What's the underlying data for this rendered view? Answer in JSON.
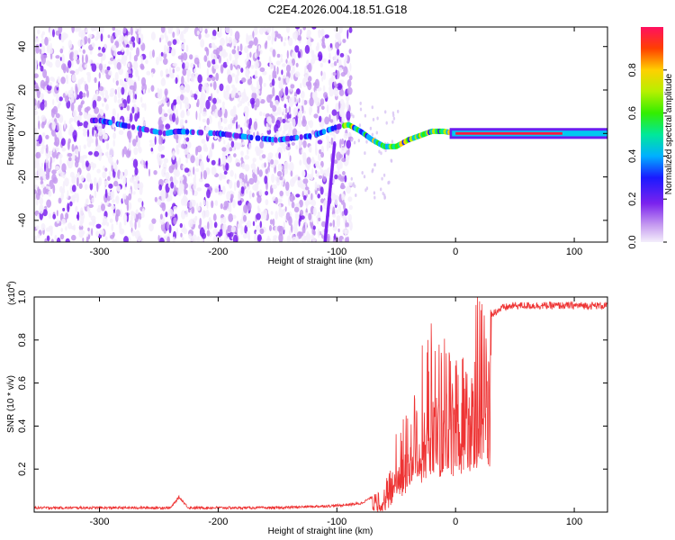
{
  "title": "C2E4.2026.004.18.51.G18",
  "chart_data": [
    {
      "type": "heatmap",
      "name": "spectrogram",
      "xlabel": "Height of straight line (km)",
      "ylabel": "Frequency (Hz)",
      "xlim": [
        -355,
        128
      ],
      "ylim": [
        -50,
        49
      ],
      "xticks": [
        -300,
        -200,
        -100,
        0,
        100
      ],
      "xtick_labels": [
        "-300",
        "-200",
        "-100",
        "0",
        "100"
      ],
      "yticks": [
        -40,
        -20,
        0,
        20,
        40
      ],
      "ytick_labels": [
        "-40",
        "-20",
        "0",
        "20",
        "40"
      ],
      "ridge": [
        {
          "x": -300,
          "y": 6
        },
        {
          "x": -245,
          "y": 0
        },
        {
          "x": -235,
          "y": 1
        },
        {
          "x": -200,
          "y": 0
        },
        {
          "x": -170,
          "y": -2
        },
        {
          "x": -150,
          "y": -3
        },
        {
          "x": -120,
          "y": -1
        },
        {
          "x": -100,
          "y": 3
        },
        {
          "x": -90,
          "y": 4
        },
        {
          "x": -80,
          "y": 1
        },
        {
          "x": -70,
          "y": -3
        },
        {
          "x": -60,
          "y": -6
        },
        {
          "x": -50,
          "y": -6
        },
        {
          "x": -40,
          "y": -3
        },
        {
          "x": -30,
          "y": -1
        },
        {
          "x": -20,
          "y": 1
        },
        {
          "x": -10,
          "y": 1
        },
        {
          "x": 0,
          "y": 0
        },
        {
          "x": 128,
          "y": 0
        }
      ],
      "colorbar": {
        "label": "Normalized spectral amplitude",
        "range": [
          0,
          1
        ],
        "ticks": [
          0.0,
          0.2,
          0.4,
          0.6,
          0.8
        ],
        "tick_labels": [
          "0.0",
          "0.2",
          "0.4",
          "0.6",
          "0.8"
        ]
      }
    },
    {
      "type": "line",
      "name": "snr",
      "xlabel": "Height of straight line (km)",
      "ylabel": "SNR (10 * v/v)",
      "scale_label": "(x10",
      "scale_exp": "4",
      "scale_close": ")",
      "color": "#ee3333",
      "xlim": [
        -355,
        128
      ],
      "ylim": [
        0,
        1.0
      ],
      "xticks": [
        -300,
        -200,
        -100,
        0,
        100
      ],
      "xtick_labels": [
        "-300",
        "-200",
        "-100",
        "0",
        "100"
      ],
      "yticks": [
        0.2,
        0.4,
        0.6,
        0.8,
        1.0
      ],
      "ytick_labels": [
        "0.2",
        "0.4",
        "0.6",
        "0.8",
        "1.0"
      ],
      "envelope": [
        {
          "x": -355,
          "y": 0.02
        },
        {
          "x": -240,
          "y": 0.02
        },
        {
          "x": -233,
          "y": 0.07
        },
        {
          "x": -225,
          "y": 0.02
        },
        {
          "x": -150,
          "y": 0.02
        },
        {
          "x": -100,
          "y": 0.03
        },
        {
          "x": -80,
          "y": 0.04
        },
        {
          "x": -60,
          "y": 0.1
        },
        {
          "x": -50,
          "y": 0.28
        },
        {
          "x": -40,
          "y": 0.45
        },
        {
          "x": -30,
          "y": 0.6
        },
        {
          "x": -20,
          "y": 0.72
        },
        {
          "x": -10,
          "y": 0.7
        },
        {
          "x": 0,
          "y": 0.74
        },
        {
          "x": 10,
          "y": 0.8
        },
        {
          "x": 20,
          "y": 0.86
        },
        {
          "x": 30,
          "y": 0.92
        },
        {
          "x": 40,
          "y": 0.95
        },
        {
          "x": 50,
          "y": 0.96
        },
        {
          "x": 128,
          "y": 0.96
        }
      ]
    }
  ]
}
